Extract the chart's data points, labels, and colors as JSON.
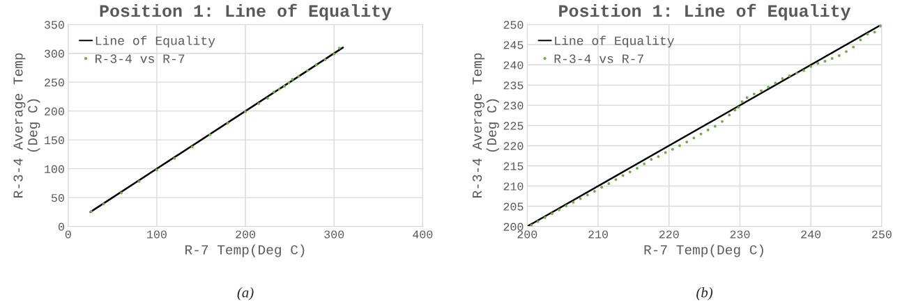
{
  "chart_data": [
    {
      "type": "scatter",
      "title": "Position 1: Line of Equality",
      "xlabel": "R-7 Temp(Deg C)",
      "ylabel": "R-3-4 Average Temp\n(Deg C)",
      "xlim": [
        0,
        400
      ],
      "ylim": [
        0,
        350
      ],
      "xticks": [
        0,
        100,
        200,
        300,
        400
      ],
      "yticks": [
        0,
        50,
        100,
        150,
        200,
        250,
        300,
        350
      ],
      "grid": true,
      "legend": "top left",
      "annotations": [
        "(a)"
      ],
      "series": [
        {
          "name": "Line of Equality",
          "type": "line",
          "color": "#000000",
          "marker": "none",
          "x": [
            25,
            310
          ],
          "values": [
            25,
            310
          ]
        },
        {
          "name": "R-3-4 vs R-7",
          "color": "#70ad47",
          "marker": "circle",
          "x": [
            26,
            40,
            60,
            80,
            100,
            120,
            140,
            160,
            180,
            200,
            215,
            225,
            232,
            238,
            244,
            249,
            253,
            260,
            270,
            280,
            290,
            300,
            306
          ],
          "values": [
            26,
            39,
            58,
            78,
            98,
            118,
            138,
            159,
            179,
            199,
            213,
            222,
            233,
            238,
            243,
            249,
            255,
            260,
            270,
            280,
            289,
            299,
            309
          ]
        }
      ]
    },
    {
      "type": "scatter",
      "title": "Position 1: Line of Equality",
      "xlabel": "R-7 Temp(Deg C)",
      "ylabel": "R-3-4 Average Temp\n(Deg C)",
      "xlim": [
        200,
        250
      ],
      "ylim": [
        200,
        250
      ],
      "xticks": [
        200,
        210,
        220,
        230,
        240,
        250
      ],
      "yticks": [
        200,
        205,
        210,
        215,
        220,
        225,
        230,
        235,
        240,
        245,
        250
      ],
      "grid": true,
      "legend": "top left",
      "annotations": [
        "(b)"
      ],
      "series": [
        {
          "name": "Line of Equality",
          "type": "line",
          "color": "#000000",
          "marker": "none",
          "x": [
            200,
            250
          ],
          "values": [
            200,
            250
          ]
        },
        {
          "name": "R-3-4 vs R-7",
          "color": "#70ad47",
          "marker": "circle",
          "x": [
            200.6,
            201.5,
            202.5,
            203.5,
            204.5,
            205.5,
            206.5,
            207.5,
            208.5,
            209.5,
            210.5,
            211.5,
            212.5,
            213.5,
            214.5,
            215.5,
            216.5,
            217.5,
            218.5,
            219.5,
            220.5,
            221.5,
            222.5,
            223.5,
            224.5,
            225.5,
            226.5,
            227.5,
            228.5,
            229.3,
            229.8,
            230.3,
            231,
            232,
            233,
            234,
            235,
            236,
            237,
            238,
            239,
            240,
            241,
            242,
            243,
            244,
            245,
            246,
            247,
            248,
            249,
            249.8
          ],
          "values": [
            200.3,
            201.2,
            202.2,
            203.2,
            204.1,
            205.1,
            206.0,
            206.9,
            207.8,
            208.7,
            209.7,
            210.6,
            211.6,
            212.6,
            213.5,
            214.4,
            215.5,
            216.6,
            217.3,
            218.3,
            219.1,
            220.0,
            220.9,
            221.9,
            222.9,
            223.9,
            224.8,
            226.0,
            227.6,
            228.8,
            229.5,
            230.9,
            231.9,
            232.8,
            233.6,
            234.5,
            235.5,
            236.6,
            237.3,
            238.0,
            238.6,
            239.6,
            240.4,
            240.9,
            241.6,
            242.3,
            243.3,
            244.4,
            246.2,
            247.6,
            248.1,
            249.6
          ]
        }
      ]
    }
  ]
}
